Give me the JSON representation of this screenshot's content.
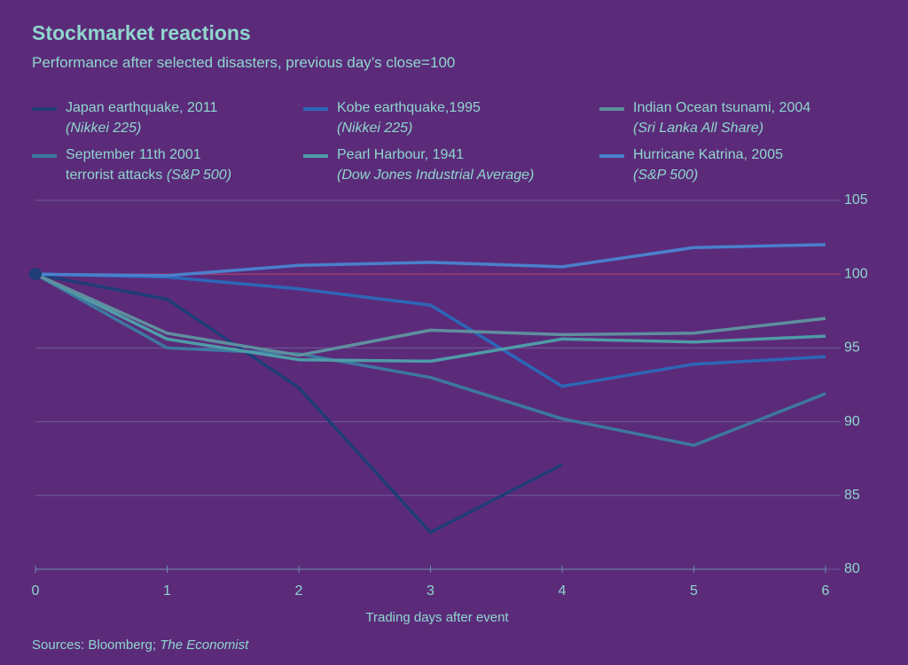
{
  "chart_data": {
    "type": "line",
    "title": "Stockmarket reactions",
    "subtitle": "Performance after selected disasters, previous day’s close=100",
    "x_label": "Trading days after event",
    "source": "Sources: Bloomberg;",
    "source_italic": "The Economist",
    "x": [
      0,
      1,
      2,
      3,
      4,
      5,
      6
    ],
    "xlim": [
      0,
      6
    ],
    "xticks": [
      0,
      1,
      2,
      3,
      4,
      5,
      6
    ],
    "ylim": [
      80,
      105
    ],
    "yticks": [
      80,
      85,
      90,
      95,
      100,
      105
    ],
    "grid": true,
    "series": [
      {
        "name": "Japan earthquake, 2011",
        "index": "(Nikkei 225)",
        "color": "#1f3d78",
        "values": [
          100,
          98.3,
          92.3,
          82.5,
          87.1,
          null,
          null
        ]
      },
      {
        "name": "September 11th 2001\nterrorist attacks",
        "index": "(S&P 500)",
        "color": "#3d78a0",
        "values": [
          100,
          95.0,
          94.6,
          93.0,
          90.2,
          88.4,
          91.9
        ]
      },
      {
        "name": "Kobe earthquake,1995",
        "index": "(Nikkei 225)",
        "color": "#2c66b8",
        "values": [
          100,
          99.8,
          99.0,
          97.9,
          92.4,
          93.9,
          94.4
        ]
      },
      {
        "name": "Pearl Harbour, 1941",
        "index": "(Dow Jones Industrial Average)",
        "color": "#4e9ca8",
        "values": [
          100,
          95.6,
          94.2,
          94.1,
          95.6,
          95.4,
          95.8
        ]
      },
      {
        "name": "Indian Ocean tsunami, 2004",
        "index": "(Sri Lanka All Share)",
        "color": "#5f8f9e",
        "values": [
          100,
          96.0,
          94.5,
          96.2,
          95.9,
          96.0,
          97.0
        ]
      },
      {
        "name": "Hurricane Katrina, 2005",
        "index": "(S&P 500)",
        "color": "#4a80cc",
        "values": [
          100,
          99.9,
          100.6,
          100.8,
          100.5,
          101.8,
          102.0
        ]
      }
    ]
  }
}
